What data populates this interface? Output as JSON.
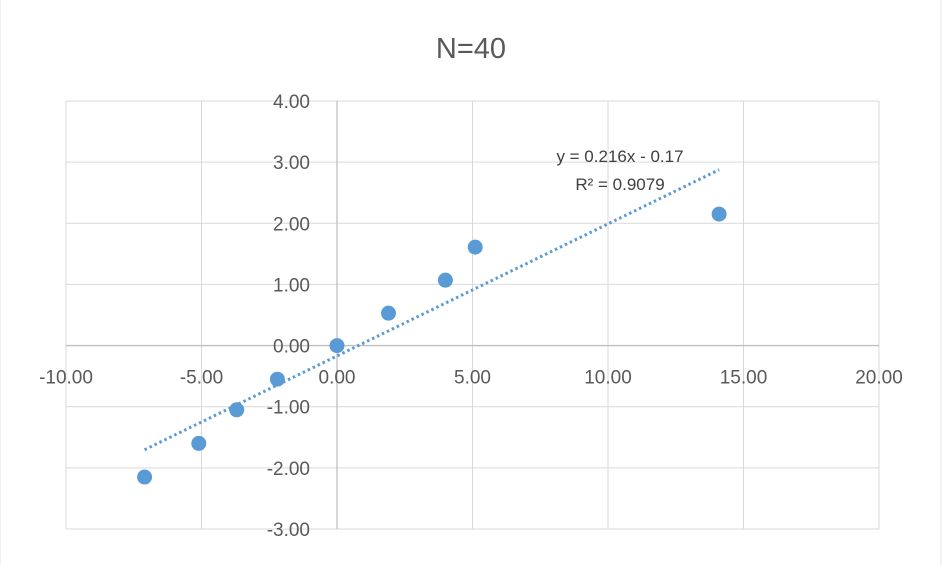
{
  "chart_data": {
    "type": "scatter",
    "title": "N=40",
    "xlim": [
      -10,
      20
    ],
    "ylim": [
      -3,
      4
    ],
    "x_ticks": [
      "-10.00",
      "-5.00",
      "0.00",
      "5.00",
      "10.00",
      "15.00",
      "20.00"
    ],
    "y_ticks": [
      "4.00",
      "3.00",
      "2.00",
      "1.00",
      "0.00",
      "-1.00",
      "-2.00",
      "-3.00"
    ],
    "x_tick_values": [
      -10,
      -5,
      0,
      5,
      10,
      15,
      20
    ],
    "y_tick_values": [
      4,
      3,
      2,
      1,
      0,
      -1,
      -2,
      -3
    ],
    "grid": true,
    "legend": "none",
    "series": [
      {
        "color": "#5b9bd5",
        "points": [
          {
            "x": -7.1,
            "y": -2.15
          },
          {
            "x": -5.1,
            "y": -1.6
          },
          {
            "x": -3.7,
            "y": -1.05
          },
          {
            "x": -2.2,
            "y": -0.55
          },
          {
            "x": 0.0,
            "y": 0.0
          },
          {
            "x": 1.9,
            "y": 0.53
          },
          {
            "x": 4.0,
            "y": 1.07
          },
          {
            "x": 5.1,
            "y": 1.61
          },
          {
            "x": 14.1,
            "y": 2.15
          }
        ]
      }
    ],
    "trendline": {
      "slope": 0.216,
      "intercept": -0.17,
      "x_range": [
        -7.1,
        14.1
      ],
      "equation": "y = 0.216x - 0.17",
      "r_squared": "R² = 0.9079",
      "color": "#5b9bd5"
    }
  }
}
